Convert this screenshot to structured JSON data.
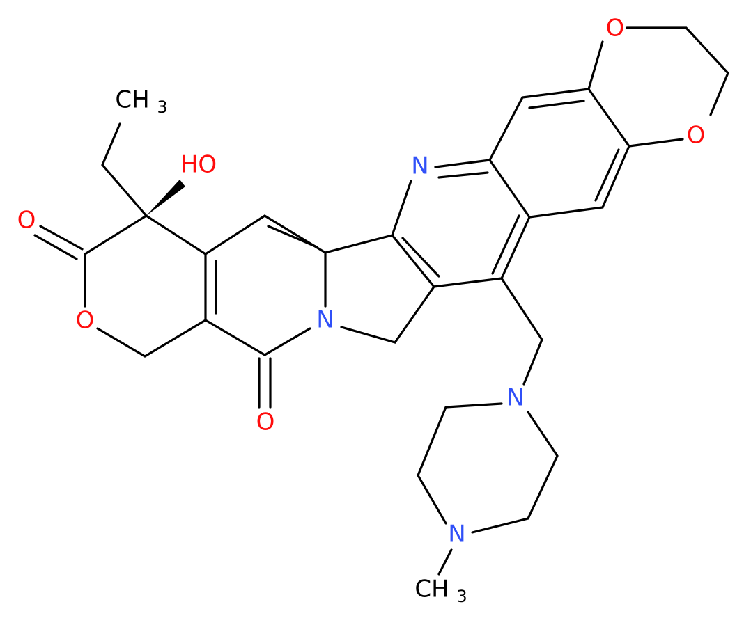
{
  "molecule": {
    "atoms": [
      {
        "label": "O",
        "element": "O"
      },
      {
        "label": "O",
        "element": "O"
      },
      {
        "label": "N",
        "element": "N"
      },
      {
        "label": "CH",
        "sub": "3",
        "element": "C"
      },
      {
        "label": "HO",
        "element": "O"
      },
      {
        "label": "O",
        "element": "O"
      },
      {
        "label": "O",
        "element": "O"
      },
      {
        "label": "N",
        "element": "N"
      },
      {
        "label": "O",
        "element": "O"
      },
      {
        "label": "N",
        "element": "N"
      },
      {
        "label": "N",
        "element": "N"
      },
      {
        "label": "CH",
        "sub": "3",
        "element": "C"
      }
    ]
  }
}
